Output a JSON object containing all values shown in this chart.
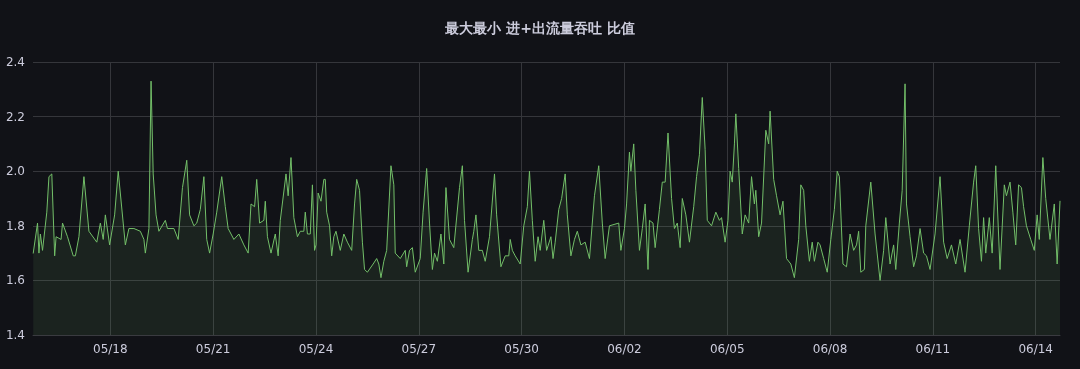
{
  "chart_data": {
    "type": "area",
    "title": "最大最小 进+出流量吞吐 比值",
    "color": "#73bf69",
    "grid": true,
    "marker": "none",
    "line_style": "solid",
    "xlim": [
      "--05-15T17:50",
      "--06-14T17:00"
    ],
    "xticks": [
      {
        "value": "--05-18",
        "label": "05/18"
      },
      {
        "value": "--05-21",
        "label": "05/21"
      },
      {
        "value": "--05-24",
        "label": "05/24"
      },
      {
        "value": "--05-27",
        "label": "05/27"
      },
      {
        "value": "--05-30",
        "label": "05/30"
      },
      {
        "value": "--06-02",
        "label": "06/02"
      },
      {
        "value": "--06-05",
        "label": "06/05"
      },
      {
        "value": "--06-08",
        "label": "06/08"
      },
      {
        "value": "--06-11",
        "label": "06/11"
      },
      {
        "value": "--06-14",
        "label": "06/14"
      }
    ],
    "ylim": [
      1.4,
      2.4
    ],
    "yticks": [
      1.4,
      1.6,
      1.8,
      {
        "value": 2,
        "label": "2.0"
      },
      2.2,
      2.4
    ],
    "x": [
      "--05-15T18:00",
      "--05-15T21:00",
      "--05-15T22:00",
      "--05-15T23:00",
      "--05-16T00:30",
      "--05-16T03:30",
      "--05-16T05:00",
      "--05-16T07:00",
      "--05-16T09:00",
      "--05-16T10:00",
      "--05-16T13:30",
      "--05-16T14:30",
      "--05-16T18:00",
      "--05-16T22:00",
      "--05-16T23:30",
      "--05-17T02:00",
      "--05-17T05:30",
      "--05-17T09:00",
      "--05-17T14:30",
      "--05-17T17:00",
      "--05-17T19:00",
      "--05-17T20:30",
      "--05-17T23:30",
      "--05-18T03:00",
      "--05-18T05:30",
      "--05-18T09:00",
      "--05-18T10:30",
      "--05-18T13:00",
      "--05-18T16:30",
      "--05-18T21:00",
      "--05-18T23:30",
      "--05-19T00:30",
      "--05-19T03:00",
      "--05-19T04:30",
      "--05-19T06:00",
      "--05-19T08:00",
      "--05-19T10:00",
      "--05-19T14:30",
      "--05-19T16:00",
      "--05-19T20:30",
      "--05-19T23:30",
      "--05-20T02:30",
      "--05-20T05:30",
      "--05-20T07:30",
      "--05-20T10:30",
      "--05-20T12:30",
      "--05-20T15:00",
      "--05-20T17:30",
      "--05-20T19:30",
      "--05-20T21:30",
      "--05-21T00:00",
      "--05-21T02:30",
      "--05-21T06:00",
      "--05-21T08:30",
      "--05-21T10:30",
      "--05-21T14:30",
      "--05-21T18:00",
      "--05-21T21:30",
      "--05-22T00:30",
      "--05-22T02:30",
      "--05-22T05:00",
      "--05-22T06:30",
      "--05-22T08:30",
      "--05-22T11:30",
      "--05-22T12:30",
      "--05-22T14:00",
      "--05-22T16:30",
      "--05-22T19:30",
      "--05-22T21:30",
      "--05-22T23:00",
      "--05-23T03:00",
      "--05-23T04:30",
      "--05-23T06:30",
      "--05-23T08:30",
      "--05-23T11:00",
      "--05-23T13:00",
      "--05-23T15:30",
      "--05-23T16:30",
      "--05-23T18:00",
      "--05-23T20:00",
      "--05-23T21:30",
      "--05-23T23:00",
      "--05-24T00:00",
      "--05-24T01:30",
      "--05-24T03:30",
      "--05-24T05:30",
      "--05-24T06:30",
      "--05-24T07:30",
      "--05-24T09:30",
      "--05-24T11:00",
      "--05-24T12:30",
      "--05-24T14:00",
      "--05-24T17:00",
      "--05-24T19:30",
      "--05-24T22:00",
      "--05-25T01:00",
      "--05-25T03:00",
      "--05-25T04:30",
      "--05-25T06:30",
      "--05-25T08:30",
      "--05-25T10:00",
      "--05-25T12:00",
      "--05-25T16:00",
      "--05-25T18:30",
      "--05-25T20:00",
      "--05-25T21:30",
      "--05-25T23:30",
      "--05-26T01:30",
      "--05-26T04:30",
      "--05-26T06:30",
      "--05-26T07:30",
      "--05-26T11:00",
      "--05-26T14:30",
      "--05-26T15:30",
      "--05-26T17:30",
      "--05-26T19:30",
      "--05-26T21:30",
      "--05-27T01:00",
      "--05-27T03:00",
      "--05-27T05:30",
      "--05-27T07:30",
      "--05-27T09:30",
      "--05-27T11:00",
      "--05-27T13:00",
      "--05-27T15:30",
      "--05-27T17:30",
      "--05-27T19:00",
      "--05-27T21:30",
      "--05-28T00:30",
      "--05-28T04:30",
      "--05-28T06:30",
      "--05-28T08:00",
      "--05-28T10:30",
      "--05-28T13:30",
      "--05-28T14:30",
      "--05-28T16:00",
      "--05-28T18:00",
      "--05-28T20:30",
      "--05-28T22:30",
      "--05-29T01:30",
      "--05-29T05:00",
      "--05-29T06:30",
      "--05-29T09:30",
      "--05-29T12:30",
      "--05-29T15:00",
      "--05-29T16:00",
      "--05-29T17:30",
      "--05-29T19:30",
      "--05-29T23:00",
      "--05-30T01:30",
      "--05-30T04:00",
      "--05-30T05:30",
      "--05-30T07:30",
      "--05-30T09:30",
      "--05-30T11:30",
      "--05-30T13:00",
      "--05-30T15:30",
      "--05-30T17:30",
      "--05-30T20:30",
      "--05-30T22:00",
      "--05-30T23:30",
      "--05-31T02:00",
      "--05-31T04:00",
      "--05-31T06:30",
      "--05-31T08:00",
      "--05-31T10:30",
      "--05-31T13:00",
      "--05-31T15:00",
      "--05-31T17:30",
      "--05-31T20:30",
      "--05-31T23:30",
      "--06-01T03:00",
      "--06-01T06:00",
      "--06-01T08:30",
      "--06-01T10:30",
      "--06-01T13:30",
      "--06-01T20:00",
      "--06-01T21:30",
      "--06-02T00:00",
      "--06-02T01:30",
      "--06-02T03:30",
      "--06-02T04:30",
      "--06-02T06:30",
      "--06-02T08:00",
      "--06-02T10:30",
      "--06-02T12:30",
      "--06-02T14:30",
      "--06-02T16:30",
      "--06-02T17:30",
      "--06-02T20:00",
      "--06-02T21:30",
      "--06-03T00:30",
      "--06-03T02:30",
      "--06-03T04:30",
      "--06-03T06:30",
      "--06-03T09:00",
      "--06-03T11:00",
      "--06-03T13:00",
      "--06-03T15:00",
      "--06-03T16:30",
      "--06-03T19:00",
      "--06-03T21:30",
      "--06-04T00:30",
      "--06-04T02:30",
      "--06-04T04:30",
      "--06-04T06:30",
      "--06-04T08:30",
      "--06-04T10:00",
      "--06-04T13:00",
      "--06-04T16:00",
      "--06-04T18:30",
      "--06-04T20:00",
      "--06-04T22:30",
      "--06-05T00:30",
      "--06-05T02:00",
      "--06-05T03:30",
      "--06-05T05:00",
      "--06-05T06:00",
      "--06-05T08:00",
      "--06-05T10:30",
      "--06-05T12:30",
      "--06-05T15:00",
      "--06-05T17:00",
      "--06-05T19:00",
      "--06-05T20:00",
      "--06-05T22:00",
      "--06-06T00:00",
      "--06-06T03:00",
      "--06-06T05:00",
      "--06-06T06:00",
      "--06-06T08:30",
      "--06-06T10:30",
      "--06-06T13:00",
      "--06-06T15:00",
      "--06-06T17:30",
      "--06-06T20:30",
      "--06-06T23:00",
      "--06-07T02:00",
      "--06-07T03:30",
      "--06-07T05:30",
      "--06-07T07:00",
      "--06-07T09:30",
      "--06-07T11:30",
      "--06-07T13:00",
      "--06-07T15:30",
      "--06-07T17:00",
      "--06-07T19:30",
      "--06-07T22:00",
      "--06-08T00:30",
      "--06-08T03:00",
      "--06-08T05:00",
      "--06-08T06:30",
      "--06-08T09:00",
      "--06-08T11:30",
      "--06-08T14:00",
      "--06-08T16:30",
      "--06-08T18:30",
      "--06-08T20:00",
      "--06-08T21:30",
      "--06-09T00:00",
      "--06-09T01:00",
      "--06-09T04:30",
      "--06-09T07:30",
      "--06-09T11:00",
      "--06-09T13:30",
      "--06-09T15:00",
      "--06-09T18:00",
      "--06-09T20:30",
      "--06-09T22:00",
      "--06-10T00:30",
      "--06-10T02:30",
      "--06-10T04:30",
      "--06-10T05:30",
      "--06-10T08:00",
      "--06-10T10:30",
      "--06-10T12:30",
      "--06-10T15:00",
      "--06-10T17:30",
      "--06-10T19:30",
      "--06-10T22:00",
      "--06-11T01:30",
      "--06-11T05:00",
      "--06-11T07:30",
      "--06-11T10:00",
      "--06-11T13:00",
      "--06-11T16:00",
      "--06-11T19:00",
      "--06-11T22:30",
      "--06-12T01:30",
      "--06-12T04:30",
      "--06-12T06:00",
      "--06-12T08:00",
      "--06-12T10:00",
      "--06-12T11:30",
      "--06-12T13:00",
      "--06-12T15:30",
      "--06-12T17:30",
      "--06-12T20:00",
      "--06-12T23:00",
      "--06-13T02:00",
      "--06-13T03:30",
      "--06-13T06:00",
      "--06-13T08:00",
      "--06-13T10:00",
      "--06-13T12:00",
      "--06-13T14:00",
      "--06-13T15:30",
      "--06-13T17:30",
      "--06-13T20:30",
      "--06-13T23:00",
      "--06-14T01:00",
      "--06-14T02:30",
      "--06-14T05:00",
      "--06-14T07:00",
      "--06-14T10:00",
      "--06-14T13:00",
      "--06-14T15:00",
      "--06-14T17:00"
    ],
    "values": [
      1.7,
      1.81,
      1.7,
      1.77,
      1.71,
      1.85,
      1.98,
      1.99,
      1.69,
      1.76,
      1.75,
      1.81,
      1.76,
      1.69,
      1.69,
      1.76,
      1.98,
      1.78,
      1.74,
      1.81,
      1.75,
      1.84,
      1.73,
      1.84,
      2.0,
      1.81,
      1.73,
      1.79,
      1.79,
      1.78,
      1.75,
      1.7,
      1.79,
      2.33,
      1.99,
      1.84,
      1.78,
      1.82,
      1.79,
      1.79,
      1.75,
      1.94,
      2.04,
      1.84,
      1.8,
      1.81,
      1.86,
      1.98,
      1.75,
      1.7,
      1.77,
      1.85,
      1.98,
      1.87,
      1.79,
      1.75,
      1.77,
      1.73,
      1.7,
      1.88,
      1.87,
      1.97,
      1.81,
      1.82,
      1.89,
      1.76,
      1.7,
      1.77,
      1.69,
      1.82,
      1.99,
      1.91,
      2.05,
      1.83,
      1.76,
      1.78,
      1.78,
      1.85,
      1.77,
      1.77,
      1.95,
      1.71,
      1.73,
      1.92,
      1.89,
      1.97,
      1.97,
      1.85,
      1.8,
      1.69,
      1.76,
      1.78,
      1.71,
      1.77,
      1.74,
      1.71,
      1.88,
      1.97,
      1.93,
      1.74,
      1.64,
      1.63,
      1.66,
      1.68,
      1.66,
      1.61,
      1.67,
      1.71,
      2.02,
      1.95,
      1.7,
      1.68,
      1.71,
      1.65,
      1.71,
      1.72,
      1.63,
      1.68,
      1.85,
      2.01,
      1.81,
      1.64,
      1.7,
      1.67,
      1.77,
      1.66,
      1.94,
      1.75,
      1.72,
      1.94,
      2.02,
      1.82,
      1.63,
      1.75,
      1.78,
      1.84,
      1.71,
      1.71,
      1.67,
      1.76,
      1.99,
      1.84,
      1.65,
      1.69,
      1.69,
      1.75,
      1.71,
      1.69,
      1.66,
      1.8,
      1.87,
      2.0,
      1.82,
      1.67,
      1.76,
      1.71,
      1.82,
      1.71,
      1.76,
      1.68,
      1.74,
      1.86,
      1.9,
      1.99,
      1.84,
      1.69,
      1.75,
      1.78,
      1.73,
      1.74,
      1.68,
      1.91,
      2.02,
      1.81,
      1.68,
      1.8,
      1.81,
      1.71,
      1.79,
      1.88,
      2.07,
      2.0,
      2.1,
      1.93,
      1.71,
      1.79,
      1.88,
      1.64,
      1.82,
      1.81,
      1.72,
      1.86,
      1.96,
      1.96,
      2.14,
      1.9,
      1.79,
      1.81,
      1.72,
      1.9,
      1.84,
      1.74,
      1.87,
      1.98,
      2.06,
      2.27,
      2.08,
      1.82,
      1.8,
      1.85,
      1.82,
      1.83,
      1.74,
      1.82,
      2.0,
      1.96,
      2.1,
      2.21,
      2.01,
      1.77,
      1.84,
      1.81,
      1.98,
      1.88,
      1.93,
      1.76,
      1.81,
      2.15,
      2.1,
      2.22,
      1.97,
      1.91,
      1.84,
      1.89,
      1.68,
      1.66,
      1.61,
      1.75,
      1.95,
      1.93,
      1.8,
      1.67,
      1.74,
      1.67,
      1.74,
      1.73,
      1.68,
      1.63,
      1.75,
      1.86,
      2.0,
      1.98,
      1.66,
      1.65,
      1.77,
      1.71,
      1.73,
      1.78,
      1.63,
      1.64,
      1.8,
      1.96,
      1.77,
      1.6,
      1.71,
      1.83,
      1.66,
      1.73,
      1.64,
      1.81,
      1.93,
      2.32,
      1.88,
      1.76,
      1.65,
      1.69,
      1.79,
      1.7,
      1.69,
      1.64,
      1.77,
      1.98,
      1.74,
      1.68,
      1.73,
      1.66,
      1.75,
      1.63,
      1.8,
      1.96,
      2.02,
      1.79,
      1.67,
      1.83,
      1.7,
      1.83,
      1.7,
      2.02,
      1.64,
      1.95,
      1.91,
      1.96,
      1.85,
      1.73,
      1.95,
      1.94,
      1.87,
      1.8,
      1.75,
      1.71,
      1.84,
      1.75,
      2.05,
      1.9,
      1.75,
      1.88,
      1.66,
      1.89
    ]
  }
}
